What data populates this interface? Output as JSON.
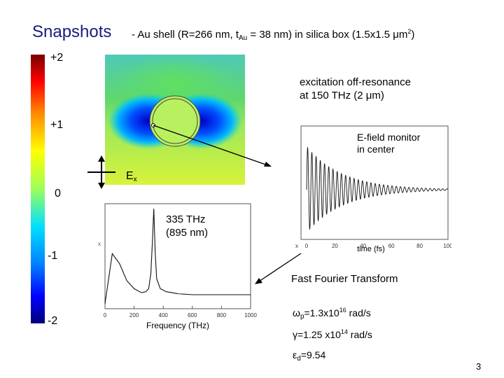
{
  "title": "Snapshots",
  "subtitle": {
    "part1": "- Au shell (R=266 nm, t",
    "sub": "Au",
    "part2": " = 38 nm) in silica box (1.5x1.5 μm",
    "sup": "2",
    "part3": ")"
  },
  "colorbar": {
    "labels": [
      "+2",
      "+1",
      "0",
      "-1",
      "-2"
    ],
    "colors": [
      "#7a0000",
      "#ff0000",
      "#ff8c00",
      "#ffff00",
      "#9cff5a",
      "#00e0ff",
      "#0080ff",
      "#0000ff",
      "#00007a"
    ]
  },
  "excitation": {
    "line1": "excitation off-resonance",
    "line2": "at 150 THz (2 μm)"
  },
  "monitor": {
    "line1": "E-field monitor",
    "line2": "in center"
  },
  "field_axis": {
    "label": "E",
    "sub": "x"
  },
  "peak": {
    "line1": "335 THz",
    "line2": "(895 nm)"
  },
  "fft_label": "Fast Fourier Transform",
  "params": {
    "omega": {
      "symbol": "ω",
      "sub": "p",
      "text": "=1.3x10",
      "exp": "16",
      "unit": " rad/s"
    },
    "gamma": {
      "symbol": "γ",
      "text": "=1.25 x10",
      "exp": "14",
      "unit": " rad/s"
    },
    "eps": {
      "symbol": "ε",
      "sub": "d",
      "text": "=9.54"
    }
  },
  "page_number": "3",
  "chart_data": [
    {
      "type": "line",
      "title": "",
      "xlabel": "Frequency (THz)",
      "ylabel": "",
      "x": [
        0,
        50,
        100,
        150,
        200,
        250,
        280,
        300,
        315,
        325,
        335,
        345,
        355,
        380,
        420,
        500,
        600,
        700,
        800,
        900,
        1000
      ],
      "y": [
        0.05,
        0.55,
        0.45,
        0.28,
        0.2,
        0.16,
        0.17,
        0.2,
        0.35,
        0.65,
        1.0,
        0.55,
        0.3,
        0.2,
        0.17,
        0.15,
        0.14,
        0.14,
        0.14,
        0.14,
        0.14
      ],
      "xticks": [
        "0",
        "200",
        "400",
        "600",
        "800",
        "1000"
      ],
      "xlim": [
        0,
        1000
      ],
      "ylim": [
        0,
        1.05
      ],
      "ytick_labels": [
        "x"
      ]
    },
    {
      "type": "line",
      "title": "",
      "xlabel": "time (fs)",
      "ylabel": "",
      "xticks": [
        "x",
        "0",
        "20",
        "40",
        "60",
        "80",
        "100"
      ],
      "xlim": [
        0,
        100
      ],
      "ylim": [
        -1,
        1
      ],
      "envelope_decay_fs": 25,
      "carrier_freq_thz": 335
    }
  ]
}
